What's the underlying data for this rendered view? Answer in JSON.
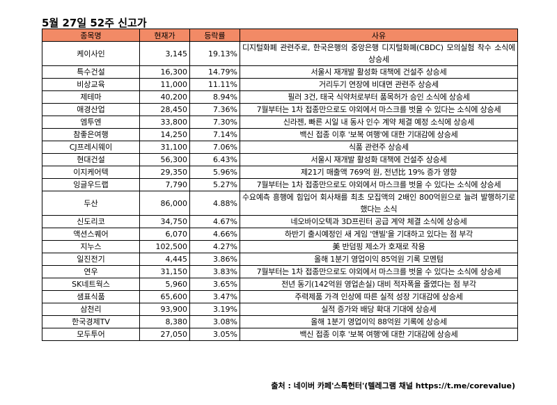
{
  "title": "5월 27일 52주 신고가",
  "headers": [
    "종목명",
    "현재가",
    "등락률",
    "사유"
  ],
  "rows": [
    {
      "name": "케이사인",
      "price": "3,145",
      "rate": "19.13%",
      "reason": "디지털화폐 관련주로, 한국은행의 중앙은행 디지털화폐(CBDC) 모의실험 착수 소식에 상승세",
      "wrap": true
    },
    {
      "name": "특수건설",
      "price": "16,300",
      "rate": "14.79%",
      "reason": "서울시 재개발 활성화 대책에 건설주 상승세"
    },
    {
      "name": "비상교육",
      "price": "11,000",
      "rate": "11.11%",
      "reason": "거리두기 연장에 비대면 관련주 상승세"
    },
    {
      "name": "제테마",
      "price": "40,200",
      "rate": "8.94%",
      "reason": "필러 3건, 태국 식약처로부터 품목허가 승인 소식에 상승세"
    },
    {
      "name": "애경산업",
      "price": "28,450",
      "rate": "7.36%",
      "reason": "7월부터는 1차 접종만으로도 야외에서 마스크를 벗을 수 있다는 소식에 상승세",
      "wrap": true
    },
    {
      "name": "엠투엔",
      "price": "33,800",
      "rate": "7.30%",
      "reason": "신라젠, 빠른 시일 내 동사 인수 계약 체결 예정 소식에 상승세"
    },
    {
      "name": "참좋은여행",
      "price": "14,250",
      "rate": "7.14%",
      "reason": "백신 접종 이후 '보복 여행'에 대한 기대감에 상승세"
    },
    {
      "name": "CJ프레시웨이",
      "price": "31,100",
      "rate": "7.06%",
      "reason": "식품 관련주 상승세"
    },
    {
      "name": "현대건설",
      "price": "56,300",
      "rate": "6.43%",
      "reason": "서울시 재개발 활성화 대책에 건설주 상승세"
    },
    {
      "name": "이지케어텍",
      "price": "29,350",
      "rate": "5.96%",
      "reason": "제21기 매출액 769억 원, 전년比 19% 증가 영향"
    },
    {
      "name": "잉글우드랩",
      "price": "7,790",
      "rate": "5.27%",
      "reason": "7월부터는 1차 접종만으로도 야외에서 마스크를 벗을 수 있다는 소식에 상승세",
      "wrap": true
    },
    {
      "name": "두산",
      "price": "86,000",
      "rate": "4.88%",
      "reason": "수요예측 흥행에 힘입어 회사채를 최초 모집액의 2배인 800억원으로 늘려 발행하기로 했다는 소식",
      "wrap": true
    },
    {
      "name": "신도리코",
      "price": "34,750",
      "rate": "4.67%",
      "reason": "네오바이오텍과 3D프린터 공급 계약 체결 소식에 상승세"
    },
    {
      "name": "액션스퀘어",
      "price": "6,070",
      "rate": "4.66%",
      "reason": "하반기 출시예정인 새 게임 '앤빌'을 기대하고 있다는 점 부각"
    },
    {
      "name": "지누스",
      "price": "102,500",
      "rate": "4.27%",
      "reason": "美 반덤핑 제소가 호재로 작용"
    },
    {
      "name": "일진전기",
      "price": "4,445",
      "rate": "3.86%",
      "reason": "올해 1분기 영업이익 85억원 기록 모멘텀"
    },
    {
      "name": "연우",
      "price": "31,150",
      "rate": "3.83%",
      "reason": "7월부터는 1차 접종만으로도 야외에서 마스크를 벗을 수 있다는 소식에 상승세",
      "wrap": true
    },
    {
      "name": "SK네트웍스",
      "price": "5,960",
      "rate": "3.65%",
      "reason": "전년 동기(142억원 영업손실) 대비 적자폭을 줄였다는 점 부각"
    },
    {
      "name": "샘표식품",
      "price": "65,600",
      "rate": "3.47%",
      "reason": "주력제품 가격 인상에 따른 실적 성장 기대감에 상승세"
    },
    {
      "name": "삼천리",
      "price": "93,900",
      "rate": "3.19%",
      "reason": "실적 증가와 배당 확대 기대에 상승세"
    },
    {
      "name": "한국경제TV",
      "price": "8,380",
      "rate": "3.08%",
      "reason": "올해 1분기 영업이익 88억원 기록에 상승세"
    },
    {
      "name": "모두투어",
      "price": "27,050",
      "rate": "3.05%",
      "reason": "백신 접종 이후 '보복 여행'에 대한 기대감에 상승세"
    }
  ],
  "source": "출처 : 네이버 카페'스톡헌터'(텔레그램 채널 https://t.me/corevalue)",
  "colors": {
    "header_bg": "#f28a66",
    "border": "#000000"
  }
}
